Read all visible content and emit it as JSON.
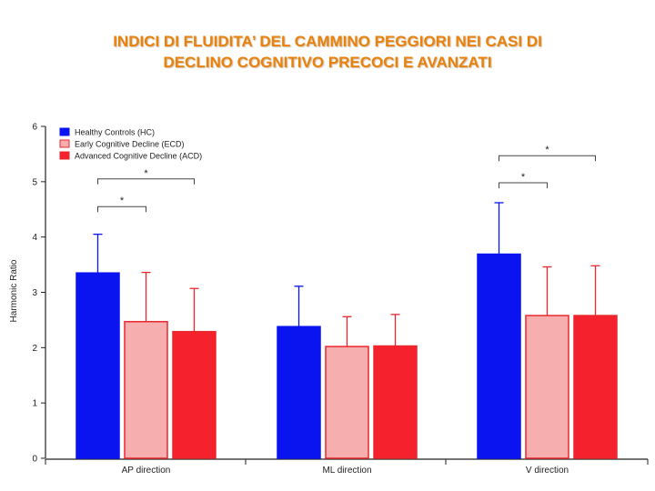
{
  "page": {
    "title_line1": "INDICI DI FLUIDITA’ DEL CAMMINO PEGGIORI NEI CASI DI",
    "title_line2": "DECLINO COGNITIVO PRECOCI E AVANZATI"
  },
  "chart_data": {
    "type": "bar",
    "title": "",
    "xlabel": "",
    "ylabel": "Harmonic Ratio",
    "ylim": [
      0,
      6
    ],
    "yticks": [
      0,
      1,
      2,
      3,
      4,
      5,
      6
    ],
    "grid": false,
    "legend_position": "top-left",
    "categories": [
      "AP direction",
      "ML direction",
      "V direction"
    ],
    "series": [
      {
        "name": "Healthy Controls (HC)",
        "color": "#0a14f0",
        "stroke": "#0a14f0",
        "values": [
          3.35,
          2.38,
          3.69
        ],
        "errors": [
          0.7,
          0.73,
          0.93
        ]
      },
      {
        "name": "Early Cognitive Decline (ECD)",
        "color": "#f7aeae",
        "stroke": "#e8282d",
        "values": [
          2.47,
          2.02,
          2.58
        ],
        "errors": [
          0.89,
          0.54,
          0.88
        ]
      },
      {
        "name": "Advanced Cognitive Decline (ACD)",
        "color": "#f5222d",
        "stroke": "#e8282d",
        "values": [
          2.29,
          2.03,
          2.58
        ],
        "errors": [
          0.78,
          0.57,
          0.9
        ]
      }
    ],
    "significance": [
      {
        "category": 0,
        "from_series": 0,
        "to_series": 1,
        "level": 4.55,
        "label": "*"
      },
      {
        "category": 0,
        "from_series": 0,
        "to_series": 2,
        "level": 5.05,
        "label": "*"
      },
      {
        "category": 2,
        "from_series": 0,
        "to_series": 1,
        "level": 4.98,
        "label": "*"
      },
      {
        "category": 2,
        "from_series": 0,
        "to_series": 2,
        "level": 5.47,
        "label": "*"
      }
    ]
  }
}
